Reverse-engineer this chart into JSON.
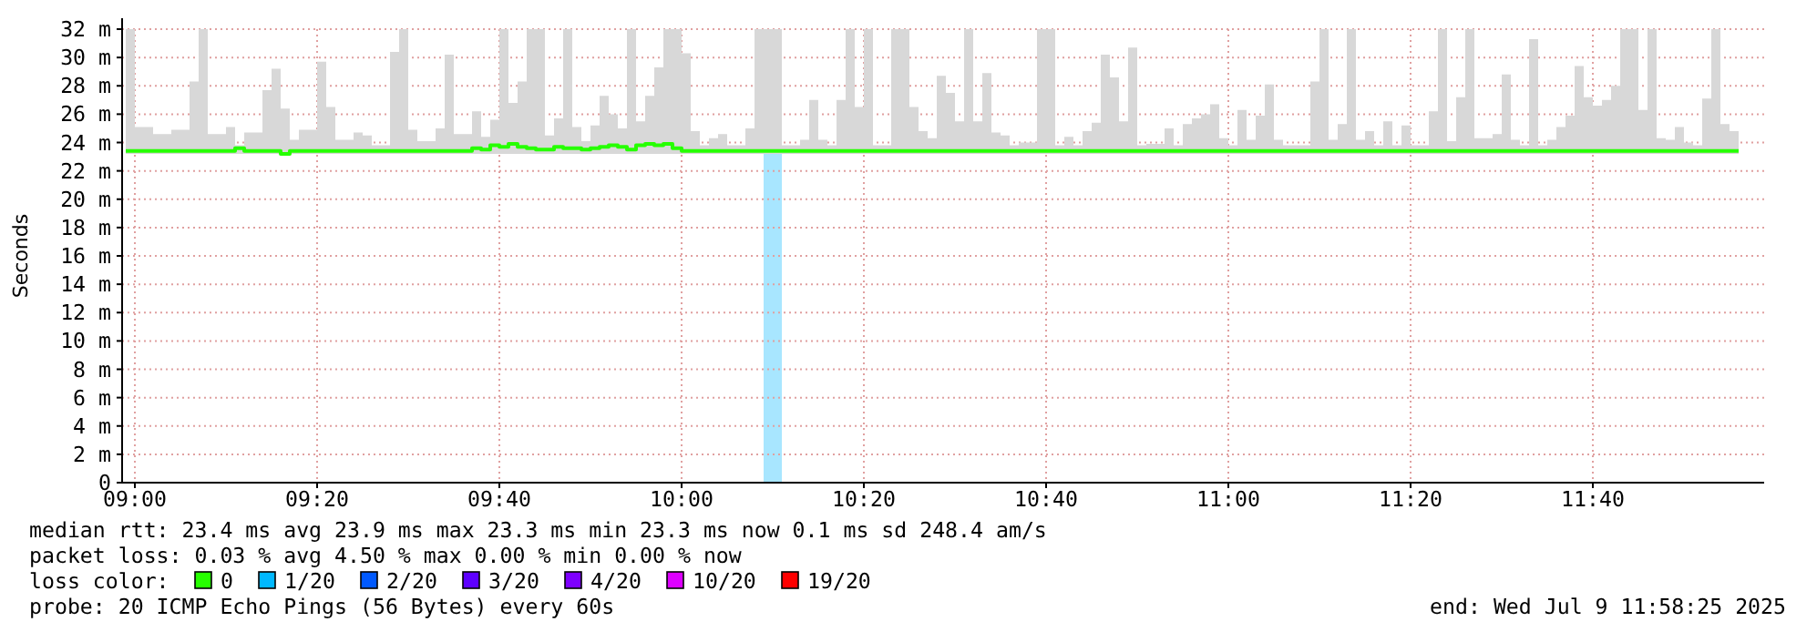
{
  "chart_data": {
    "type": "line",
    "ylabel": "Seconds",
    "xlim": [
      "2025-07-09T08:58:36",
      "2025-07-09T11:58:48"
    ],
    "xticks": [
      {
        "value": "2025-07-09T09:00",
        "label": "09:00"
      },
      {
        "value": "2025-07-09T09:20",
        "label": "09:20"
      },
      {
        "value": "2025-07-09T09:40",
        "label": "09:40"
      },
      {
        "value": "2025-07-09T10:00",
        "label": "10:00"
      },
      {
        "value": "2025-07-09T10:20",
        "label": "10:20"
      },
      {
        "value": "2025-07-09T10:40",
        "label": "10:40"
      },
      {
        "value": "2025-07-09T11:00",
        "label": "11:00"
      },
      {
        "value": "2025-07-09T11:20",
        "label": "11:20"
      },
      {
        "value": "2025-07-09T11:40",
        "label": "11:40"
      }
    ],
    "ylim": [
      0,
      32
    ],
    "yticks": [
      0,
      {
        "value": 2,
        "label": "2 m"
      },
      {
        "value": 4,
        "label": "4 m"
      },
      {
        "value": 6,
        "label": "6 m"
      },
      {
        "value": 8,
        "label": "8 m"
      },
      {
        "value": 10,
        "label": "10 m"
      },
      {
        "value": 12,
        "label": "12 m"
      },
      {
        "value": 14,
        "label": "14 m"
      },
      {
        "value": 16,
        "label": "16 m"
      },
      {
        "value": 18,
        "label": "18 m"
      },
      {
        "value": 20,
        "label": "20 m"
      },
      {
        "value": 22,
        "label": "22 m"
      },
      {
        "value": 24,
        "label": "24 m"
      },
      {
        "value": 26,
        "label": "26 m"
      },
      {
        "value": 28,
        "label": "28 m"
      },
      {
        "value": 30,
        "label": "30 m"
      },
      {
        "value": 32,
        "label": "32 m"
      }
    ],
    "grid": true,
    "x": [
      "2025-07-09T08:59",
      "2025-07-09T09:00",
      "2025-07-09T09:02",
      "2025-07-09T09:04",
      "2025-07-09T09:06",
      "2025-07-09T09:07",
      "2025-07-09T09:08",
      "2025-07-09T09:10",
      "2025-07-09T09:11",
      "2025-07-09T09:12",
      "2025-07-09T09:14",
      "2025-07-09T09:15",
      "2025-07-09T09:16",
      "2025-07-09T09:17",
      "2025-07-09T09:18",
      "2025-07-09T09:20",
      "2025-07-09T09:21",
      "2025-07-09T09:22",
      "2025-07-09T09:24",
      "2025-07-09T09:25",
      "2025-07-09T09:26",
      "2025-07-09T09:28",
      "2025-07-09T09:29",
      "2025-07-09T09:30",
      "2025-07-09T09:31",
      "2025-07-09T09:33",
      "2025-07-09T09:34",
      "2025-07-09T09:35",
      "2025-07-09T09:37",
      "2025-07-09T09:38",
      "2025-07-09T09:39",
      "2025-07-09T09:40",
      "2025-07-09T09:41",
      "2025-07-09T09:42",
      "2025-07-09T09:43",
      "2025-07-09T09:44",
      "2025-07-09T09:45",
      "2025-07-09T09:46",
      "2025-07-09T09:47",
      "2025-07-09T09:48",
      "2025-07-09T09:49",
      "2025-07-09T09:50",
      "2025-07-09T09:51",
      "2025-07-09T09:52",
      "2025-07-09T09:53",
      "2025-07-09T09:54",
      "2025-07-09T09:55",
      "2025-07-09T09:56",
      "2025-07-09T09:57",
      "2025-07-09T09:58",
      "2025-07-09T09:59",
      "2025-07-09T10:00",
      "2025-07-09T10:01",
      "2025-07-09T10:02",
      "2025-07-09T10:03",
      "2025-07-09T10:04",
      "2025-07-09T10:05",
      "2025-07-09T10:07",
      "2025-07-09T10:08",
      "2025-07-09T10:11",
      "2025-07-09T10:13",
      "2025-07-09T10:14",
      "2025-07-09T10:15",
      "2025-07-09T10:16",
      "2025-07-09T10:17",
      "2025-07-09T10:18",
      "2025-07-09T10:19",
      "2025-07-09T10:20",
      "2025-07-09T10:21",
      "2025-07-09T10:23",
      "2025-07-09T10:24",
      "2025-07-09T10:25",
      "2025-07-09T10:26",
      "2025-07-09T10:27",
      "2025-07-09T10:28",
      "2025-07-09T10:29",
      "2025-07-09T10:30",
      "2025-07-09T10:31",
      "2025-07-09T10:32",
      "2025-07-09T10:33",
      "2025-07-09T10:34",
      "2025-07-09T10:35",
      "2025-07-09T10:36",
      "2025-07-09T10:37",
      "2025-07-09T10:39",
      "2025-07-09T10:40",
      "2025-07-09T10:41",
      "2025-07-09T10:42",
      "2025-07-09T10:43",
      "2025-07-09T10:44",
      "2025-07-09T10:45",
      "2025-07-09T10:46",
      "2025-07-09T10:47",
      "2025-07-09T10:48",
      "2025-07-09T10:49",
      "2025-07-09T10:50",
      "2025-07-09T10:51",
      "2025-07-09T10:53",
      "2025-07-09T10:54",
      "2025-07-09T10:55",
      "2025-07-09T10:56",
      "2025-07-09T10:57",
      "2025-07-09T10:58",
      "2025-07-09T10:59",
      "2025-07-09T11:00",
      "2025-07-09T11:01",
      "2025-07-09T11:02",
      "2025-07-09T11:03",
      "2025-07-09T11:04",
      "2025-07-09T11:05",
      "2025-07-09T11:06",
      "2025-07-09T11:09",
      "2025-07-09T11:10",
      "2025-07-09T11:11",
      "2025-07-09T11:12",
      "2025-07-09T11:13",
      "2025-07-09T11:14",
      "2025-07-09T11:15",
      "2025-07-09T11:16",
      "2025-07-09T11:17",
      "2025-07-09T11:18",
      "2025-07-09T11:19",
      "2025-07-09T11:20",
      "2025-07-09T11:22",
      "2025-07-09T11:23",
      "2025-07-09T11:24",
      "2025-07-09T11:25",
      "2025-07-09T11:26",
      "2025-07-09T11:27",
      "2025-07-09T11:29",
      "2025-07-09T11:30",
      "2025-07-09T11:31",
      "2025-07-09T11:32",
      "2025-07-09T11:33",
      "2025-07-09T11:34",
      "2025-07-09T11:35",
      "2025-07-09T11:36",
      "2025-07-09T11:37",
      "2025-07-09T11:38",
      "2025-07-09T11:39",
      "2025-07-09T11:40",
      "2025-07-09T11:41",
      "2025-07-09T11:42",
      "2025-07-09T11:43",
      "2025-07-09T11:44",
      "2025-07-09T11:45",
      "2025-07-09T11:46",
      "2025-07-09T11:47",
      "2025-07-09T11:48",
      "2025-07-09T11:49",
      "2025-07-09T11:50",
      "2025-07-09T11:51",
      "2025-07-09T11:52",
      "2025-07-09T11:53",
      "2025-07-09T11:54",
      "2025-07-09T11:55",
      "2025-07-09T11:56"
    ],
    "series": [
      {
        "color": "#26ff00",
        "values": [
          23.4,
          23.4,
          23.4,
          23.4,
          23.4,
          23.4,
          23.4,
          23.4,
          23.6,
          23.4,
          23.4,
          23.4,
          23.2,
          23.4,
          23.4,
          23.4,
          23.4,
          23.4,
          23.4,
          23.4,
          23.4,
          23.4,
          23.4,
          23.4,
          23.4,
          23.4,
          23.4,
          23.4,
          23.6,
          23.5,
          23.8,
          23.7,
          23.9,
          23.7,
          23.6,
          23.5,
          23.5,
          23.7,
          23.6,
          23.6,
          23.5,
          23.6,
          23.7,
          23.8,
          23.7,
          23.5,
          23.8,
          23.9,
          23.8,
          23.9,
          23.6,
          23.4,
          23.4,
          23.4,
          23.4,
          23.4,
          23.4,
          23.4,
          23.4,
          23.4,
          23.4,
          23.4,
          23.4,
          23.4,
          23.4,
          23.4,
          23.4,
          23.4,
          23.4,
          23.4,
          23.4,
          23.4,
          23.4,
          23.4,
          23.4,
          23.4,
          23.4,
          23.4,
          23.4,
          23.4,
          23.4,
          23.4,
          23.4,
          23.4,
          23.4,
          23.4,
          23.4,
          23.4,
          23.4,
          23.4,
          23.4,
          23.4,
          23.4,
          23.4,
          23.4,
          23.4,
          23.4,
          23.4,
          23.4,
          23.4,
          23.4,
          23.4,
          23.4,
          23.4,
          23.4,
          23.4,
          23.4,
          23.4,
          23.4,
          23.4,
          23.4,
          23.4,
          23.4,
          23.4,
          23.4,
          23.4,
          23.4,
          23.4,
          23.4,
          23.4,
          23.4,
          23.4,
          23.4,
          23.4,
          23.4,
          23.4,
          23.4,
          23.4,
          23.4,
          23.4,
          23.4,
          23.4,
          23.4,
          23.4,
          23.4,
          23.4,
          23.4,
          23.4,
          23.4,
          23.4,
          23.4,
          23.4,
          23.4,
          23.4,
          23.4,
          23.4,
          23.4,
          23.4,
          23.4,
          23.4,
          23.4,
          23.4,
          23.4,
          23.4,
          23.4,
          23.4,
          23.4
        ],
        "lower": [
          23.2,
          23.2,
          23.2,
          23.2,
          23.2,
          23.2,
          23.2,
          23.2,
          23.2,
          23.2,
          23.2,
          23.2,
          23.2,
          23.2,
          23.2,
          23.2,
          23.2,
          23.2,
          23.2,
          23.2,
          23.2,
          23.2,
          23.2,
          23.2,
          23.2,
          23.2,
          23.2,
          23.2,
          23.2,
          23.2,
          23.2,
          23.2,
          23.2,
          23.2,
          23.2,
          23.2,
          23.2,
          23.2,
          23.2,
          23.2,
          23.2,
          23.2,
          23.2,
          23.2,
          23.2,
          23.2,
          23.2,
          23.2,
          23.2,
          23.2,
          23.2,
          23.2,
          23.2,
          23.2,
          23.2,
          23.2,
          23.2,
          23.2,
          23.2,
          23.2,
          23.2,
          23.2,
          23.2,
          23.2,
          23.2,
          23.2,
          23.2,
          23.2,
          23.2,
          23.2,
          23.2,
          23.2,
          23.2,
          23.2,
          23.2,
          23.2,
          23.2,
          23.2,
          23.2,
          23.2,
          23.2,
          23.2,
          23.2,
          23.2,
          23.2,
          23.2,
          23.2,
          23.2,
          23.2,
          23.2,
          23.2,
          23.2,
          23.2,
          23.2,
          23.2,
          23.2,
          23.2,
          23.2,
          23.2,
          23.2,
          23.2,
          23.2,
          23.2,
          23.2,
          23.2,
          23.2,
          23.2,
          23.2,
          23.2,
          23.2,
          23.2,
          23.2,
          23.2,
          23.2,
          23.2,
          23.2,
          23.2,
          23.2,
          23.2,
          23.2,
          23.2,
          23.2,
          23.2,
          23.2,
          23.2,
          23.2,
          23.2,
          23.2,
          23.2,
          23.2,
          23.2,
          23.2,
          23.2,
          23.2,
          23.2,
          23.2,
          23.2,
          23.2,
          23.2,
          23.2,
          23.2,
          23.2,
          23.2,
          23.2,
          23.2,
          23.2,
          23.2,
          23.2,
          23.2,
          23.2,
          23.2,
          23.2,
          23.2,
          23.2,
          23.2,
          23.2,
          23.2
        ],
        "upper": [
          32,
          25.1,
          24.6,
          24.9,
          28.3,
          32,
          24.6,
          25.1,
          23.8,
          24.7,
          27.7,
          29.2,
          26.4,
          24.2,
          24.9,
          29.7,
          26.5,
          24.2,
          24.7,
          24.5,
          23.8,
          30.4,
          32,
          24.9,
          24.1,
          25.0,
          30.2,
          24.6,
          26.2,
          24.4,
          25.6,
          32,
          26.8,
          28.3,
          32,
          32,
          24.5,
          25.7,
          32,
          25.1,
          24.1,
          25.2,
          27.3,
          26.0,
          25.0,
          32,
          25.5,
          27.3,
          29.3,
          32,
          32,
          30.3,
          24.8,
          23.8,
          24.3,
          24.6,
          23.8,
          25.0,
          32,
          23.8,
          24.2,
          27.0,
          24.2,
          23.8,
          27.0,
          32,
          26.5,
          32,
          23.8,
          32,
          32,
          26.5,
          24.8,
          24.3,
          28.7,
          27.5,
          25.5,
          32,
          25.5,
          28.9,
          24.7,
          24.5,
          23.8,
          24.0,
          32,
          32,
          23.8,
          24.4,
          23.8,
          24.8,
          25.4,
          30.2,
          28.6,
          25.5,
          30.7,
          23.8,
          23.9,
          25.0,
          23.8,
          25.3,
          25.7,
          26.0,
          26.7,
          24.3,
          23.8,
          26.3,
          24.2,
          25.9,
          28.1,
          24.2,
          23.8,
          28.3,
          32,
          24.2,
          25.3,
          32,
          24.2,
          24.8,
          23.8,
          25.5,
          23.8,
          25.2,
          23.8,
          26.2,
          32,
          24.1,
          27.2,
          32,
          24.3,
          24.6,
          28.8,
          24.2,
          23.8,
          31.3,
          23.8,
          24.2,
          25.1,
          25.9,
          29.4,
          27.2,
          26.6,
          27.0,
          28.0,
          32,
          32,
          26.3,
          32,
          24.3,
          24.2,
          25.1,
          24.0,
          23.8,
          27.1,
          32,
          25.3,
          24.8,
          24.8
        ]
      }
    ],
    "bands": [
      {
        "axis": "x",
        "from": "2025-07-09T10:09",
        "to": "2025-07-09T10:11",
        "color": "#a8e6ff"
      }
    ],
    "annotations": [
      "median rtt:  23.4 ms avg  23.9 ms max  23.3 ms min  23.3 ms now  0.1 ms sd  248.4   am/s",
      "packet loss: 0.03 % avg  4.50 % max  0.00 % min  0.00 % now",
      "loss color:",
      "0",
      "1/20",
      "2/20",
      "3/20",
      "4/20",
      "10/20",
      "19/20",
      "probe:       20 ICMP Echo Pings (56 Bytes) every 60s",
      "end: Wed Jul  9 11:58:25 2025"
    ]
  }
}
